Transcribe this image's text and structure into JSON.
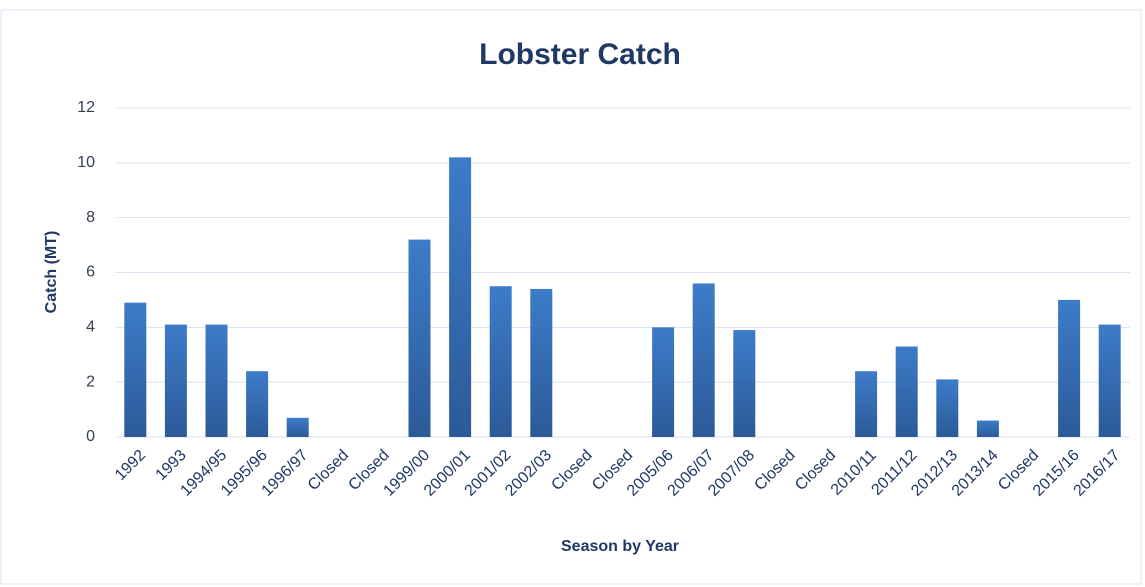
{
  "chart_data": {
    "type": "bar",
    "title": "Lobster Catch",
    "x_label": "Season by Year",
    "y_label": "Catch (MT)",
    "categories": [
      "1992",
      "1993",
      "1994/95",
      "1995/96",
      "1996/97",
      "Closed",
      "Closed",
      "1999/00",
      "2000/01",
      "2001/02",
      "2002/03",
      "Closed",
      "Closed",
      "2005/06",
      "2006/07",
      "2007/08",
      "Closed",
      "Closed",
      "2010/11",
      "2011/12",
      "2012/13",
      "2013/14",
      "Closed",
      "2015/16",
      "2016/17"
    ],
    "values": [
      4.9,
      4.1,
      4.1,
      2.4,
      0.7,
      null,
      null,
      7.2,
      10.2,
      5.5,
      5.4,
      null,
      null,
      4.0,
      5.6,
      3.9,
      null,
      null,
      2.4,
      3.3,
      2.1,
      0.6,
      null,
      5.0,
      4.1
    ],
    "color": "#3d7cc9",
    "ylim": [
      0,
      12
    ],
    "yticks": [
      0,
      2,
      4,
      6,
      8,
      10,
      12
    ],
    "grid": true
  }
}
